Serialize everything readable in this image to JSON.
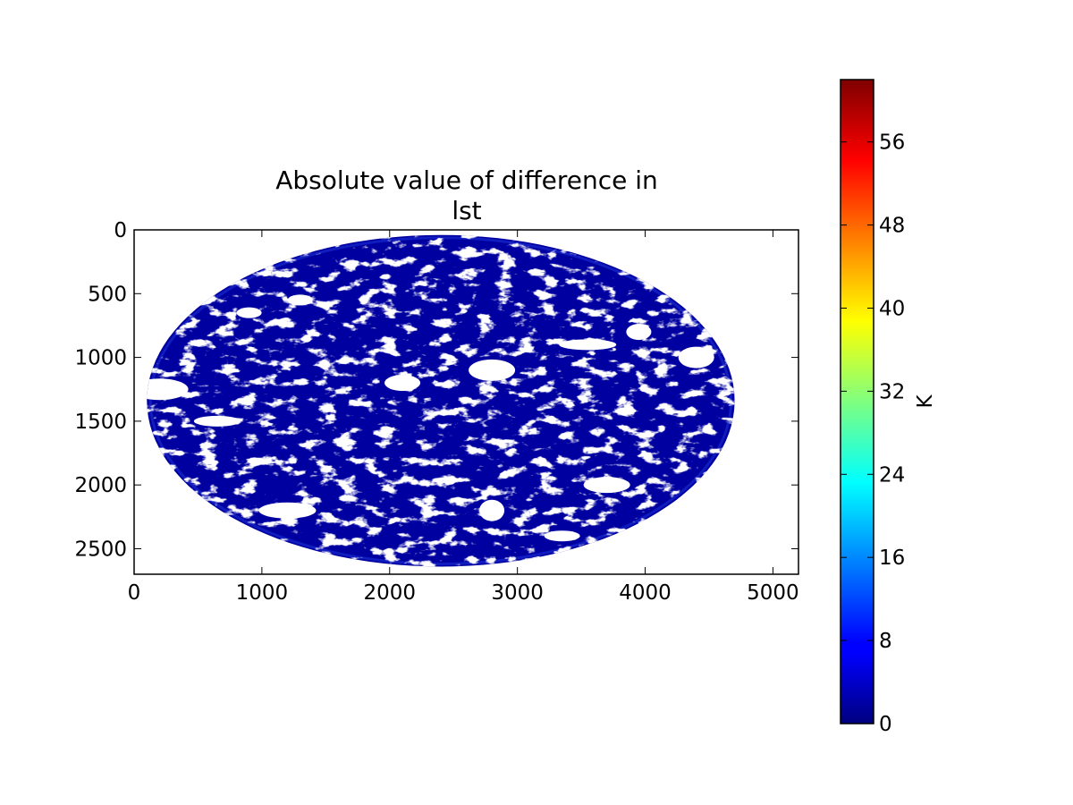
{
  "chart_data": {
    "type": "heatmap",
    "title_lines": [
      "Absolute value of difference in",
      "lst"
    ],
    "xlabel": "",
    "ylabel": "",
    "xlim": [
      0,
      5200
    ],
    "ylim": [
      2700,
      0
    ],
    "y_inverted": true,
    "x_ticks": [
      0,
      1000,
      2000,
      3000,
      4000,
      5000
    ],
    "y_ticks": [
      0,
      500,
      1000,
      1500,
      2000,
      2500
    ],
    "grid": false,
    "disk": {
      "center_x": 2400,
      "center_y": 1340,
      "semi_axis_x": 2300,
      "semi_axis_y": 1300,
      "dominant_value_range": [
        0,
        3
      ],
      "missing_color": "#ffffff"
    },
    "missing_regions": [
      {
        "x": 1300,
        "y": 550
      },
      {
        "x": 2100,
        "y": 1200
      },
      {
        "x": 2800,
        "y": 1100
      },
      {
        "x": 3550,
        "y": 900
      },
      {
        "x": 3950,
        "y": 800
      },
      {
        "x": 4400,
        "y": 1000
      },
      {
        "x": 650,
        "y": 1500
      },
      {
        "x": 1200,
        "y": 2200
      },
      {
        "x": 2800,
        "y": 2200
      },
      {
        "x": 3350,
        "y": 2400
      },
      {
        "x": 3700,
        "y": 2000
      },
      {
        "x": 200,
        "y": 1250
      },
      {
        "x": 900,
        "y": 650
      }
    ],
    "colorbar": {
      "label": "K",
      "colormap": "jet",
      "range": [
        0,
        62
      ],
      "ticks": [
        0,
        8,
        16,
        24,
        32,
        40,
        48,
        56
      ]
    }
  }
}
